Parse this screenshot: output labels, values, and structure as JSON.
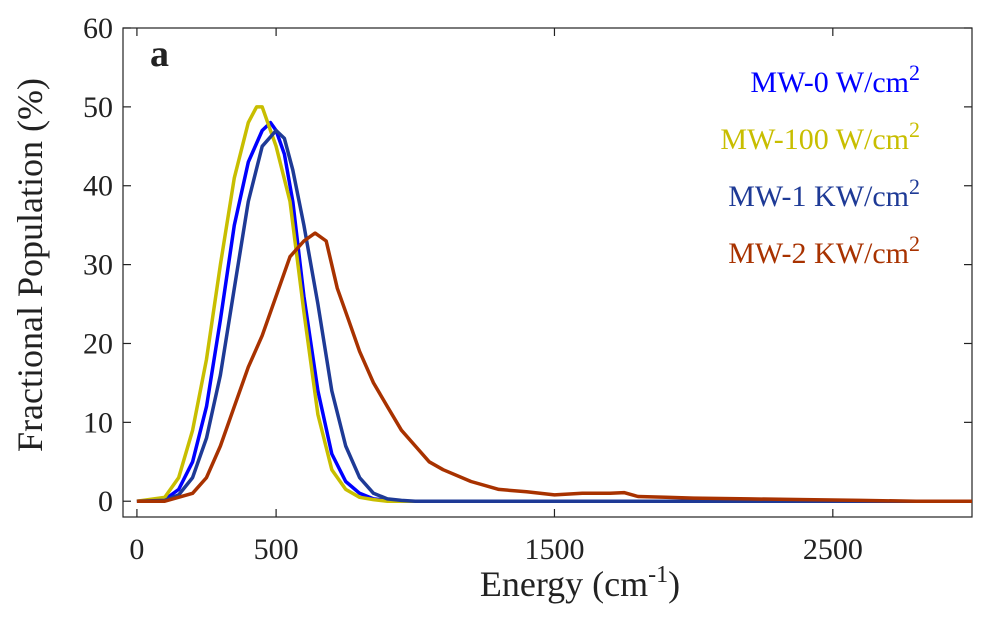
{
  "chart_data": {
    "type": "line",
    "panel_label": "a",
    "xlabel": {
      "main": "Energy (cm",
      "sup": "-1",
      "tail": ")"
    },
    "ylabel": "Fractional Population (%)",
    "xlim": [
      -50,
      3000
    ],
    "ylim": [
      -2,
      60
    ],
    "xticks": [
      0,
      500,
      1500,
      2500
    ],
    "yticks": [
      0,
      10,
      20,
      30,
      40,
      50,
      60
    ],
    "grid": false,
    "legend_position": "top-right",
    "series": [
      {
        "name": {
          "main": "MW-0 W/cm",
          "sup": "2"
        },
        "color": "#0000ff",
        "x": [
          0,
          100,
          150,
          200,
          250,
          300,
          350,
          400,
          450,
          480,
          500,
          530,
          560,
          600,
          650,
          700,
          750,
          800,
          850,
          900,
          950,
          1000,
          1500,
          2000,
          2500,
          3000
        ],
        "y": [
          0,
          0.2,
          1.5,
          5,
          12,
          23,
          35,
          43,
          47,
          48,
          47,
          44,
          38,
          26,
          14,
          6,
          2.5,
          1,
          0.3,
          0.1,
          0,
          0,
          0,
          0,
          0,
          0
        ]
      },
      {
        "name": {
          "main": "MW-100 W/cm",
          "sup": "2"
        },
        "color": "#c8be00",
        "x": [
          0,
          100,
          150,
          200,
          250,
          300,
          350,
          400,
          430,
          450,
          470,
          500,
          550,
          600,
          650,
          700,
          750,
          800,
          850,
          900,
          1000,
          1500,
          2000,
          2500,
          3000
        ],
        "y": [
          0,
          0.5,
          3,
          9,
          18,
          30,
          41,
          48,
          50,
          50,
          48,
          45,
          38,
          24,
          11,
          4,
          1.5,
          0.5,
          0.2,
          0,
          0,
          0,
          0,
          0,
          0
        ]
      },
      {
        "name": {
          "main": "MW-1 KW/cm",
          "sup": "2"
        },
        "color": "#1e3a96",
        "x": [
          0,
          100,
          150,
          200,
          250,
          300,
          350,
          400,
          450,
          500,
          530,
          560,
          600,
          650,
          700,
          750,
          800,
          850,
          900,
          950,
          1000,
          1500,
          2000,
          2500,
          3000
        ],
        "y": [
          0,
          0.1,
          0.8,
          3,
          8,
          16,
          27,
          38,
          45,
          47,
          46,
          42,
          35,
          25,
          14,
          7,
          3,
          1,
          0.3,
          0.1,
          0,
          0,
          0,
          0,
          0
        ]
      },
      {
        "name": {
          "main": "MW-2 KW/cm",
          "sup": "2"
        },
        "color": "#a83200",
        "x": [
          0,
          100,
          200,
          250,
          300,
          350,
          400,
          450,
          500,
          550,
          600,
          640,
          680,
          720,
          760,
          800,
          850,
          900,
          950,
          1000,
          1050,
          1100,
          1200,
          1300,
          1400,
          1500,
          1600,
          1700,
          1750,
          1800,
          1900,
          2000,
          2200,
          2400,
          2600,
          2800,
          3000
        ],
        "y": [
          0,
          0,
          1,
          3,
          7,
          12,
          17,
          21,
          26,
          31,
          33,
          34,
          33,
          27,
          23,
          19,
          15,
          12,
          9,
          7,
          5,
          4,
          2.5,
          1.5,
          1.2,
          0.8,
          1,
          1,
          1.1,
          0.6,
          0.5,
          0.4,
          0.3,
          0.2,
          0.1,
          0,
          0
        ]
      }
    ]
  }
}
